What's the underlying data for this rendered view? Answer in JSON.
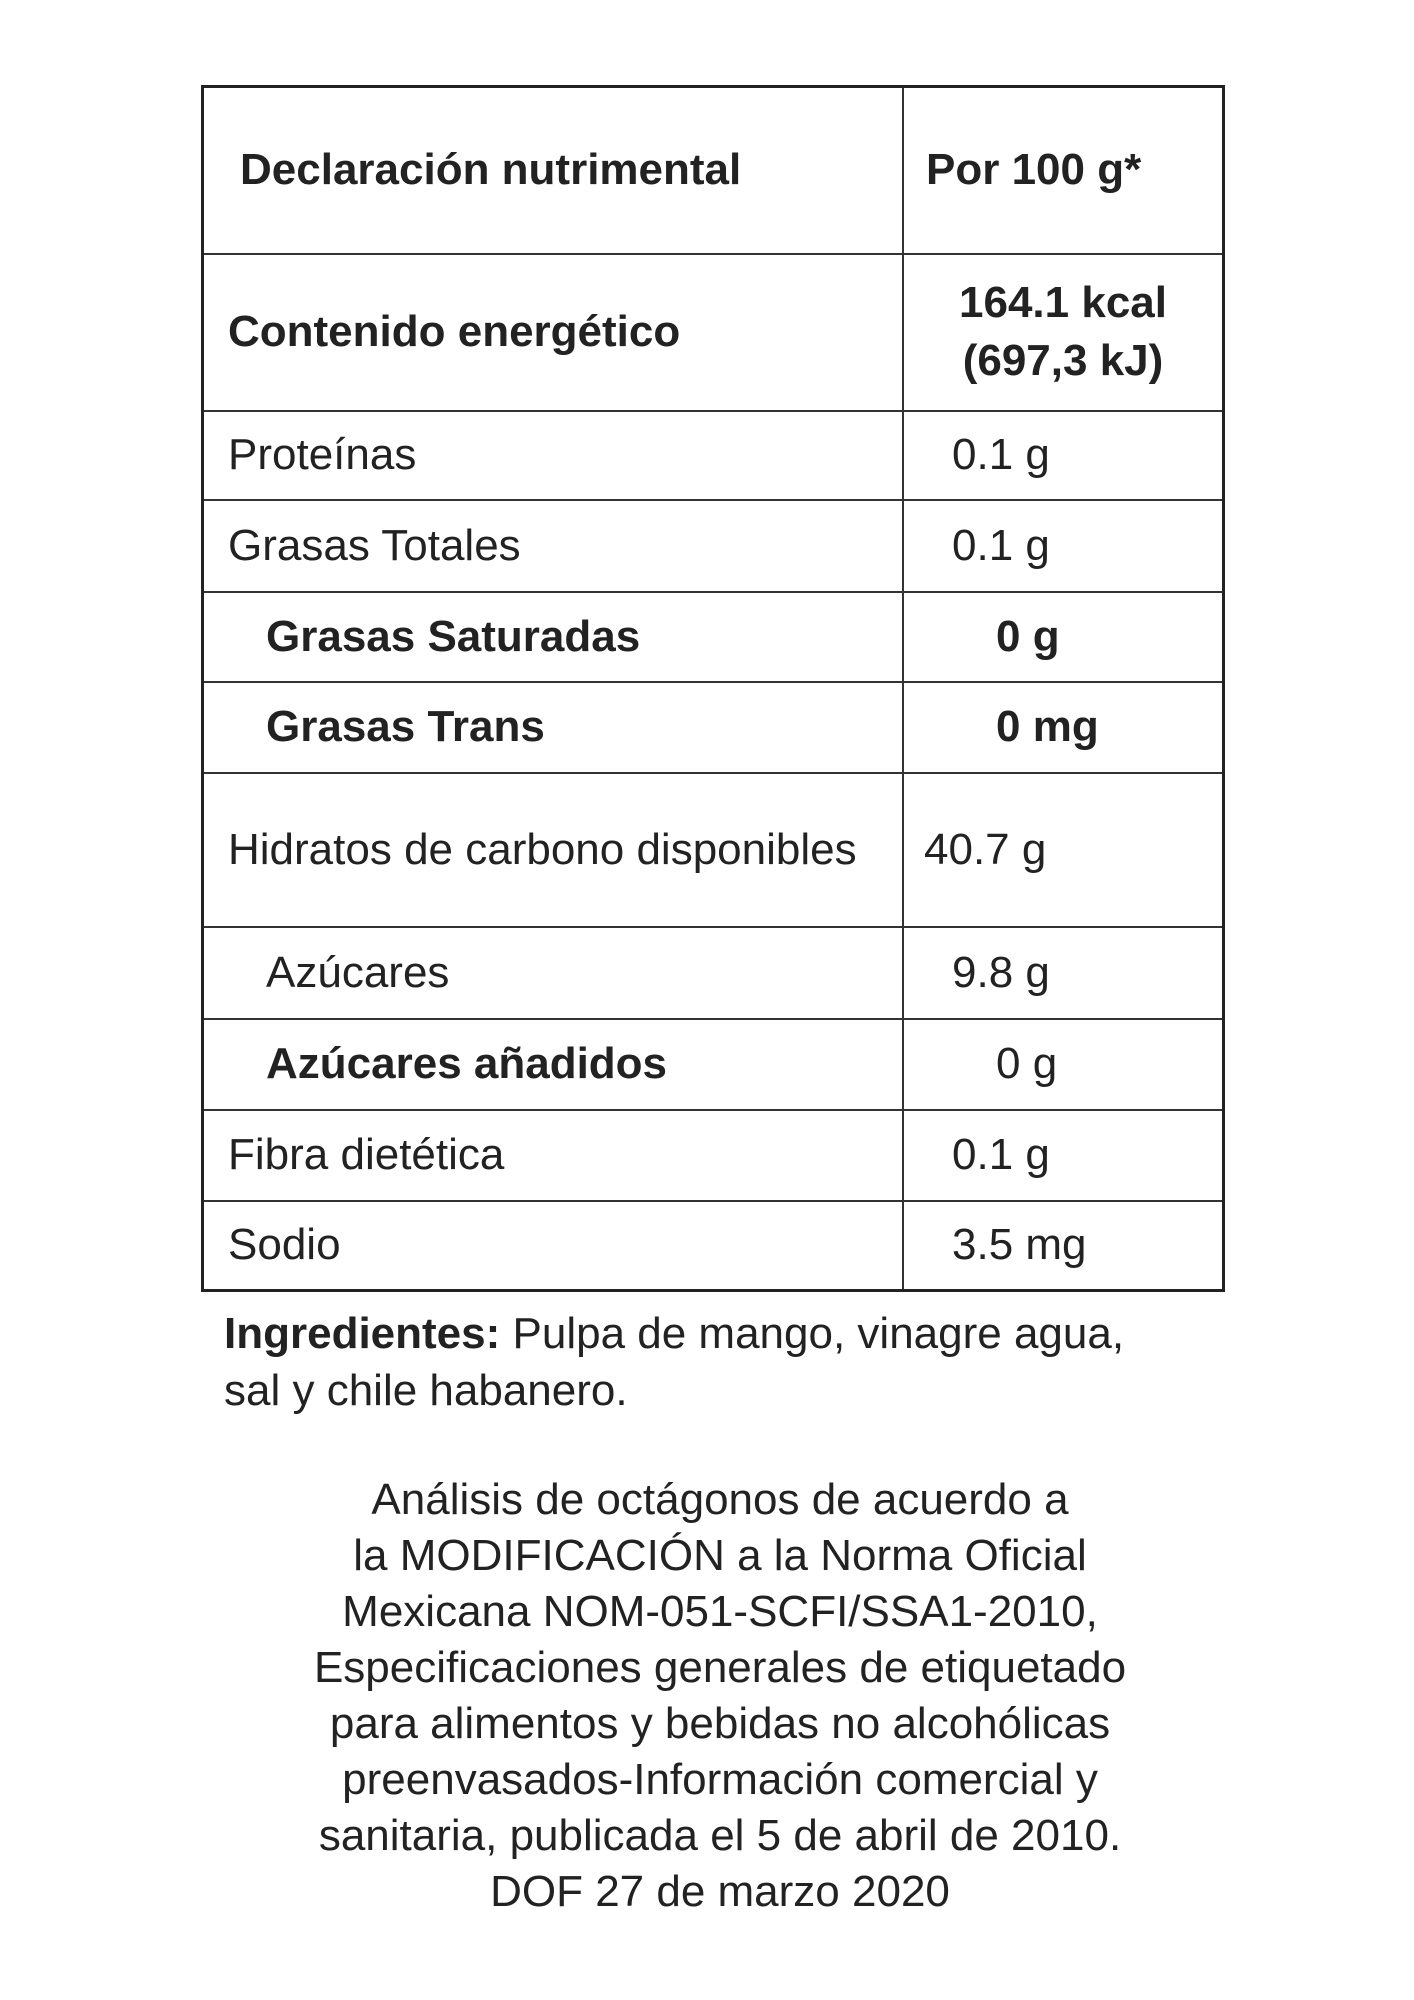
{
  "table": {
    "header": {
      "label": "Declaración nutrimental",
      "value": "Por 100 g*"
    },
    "energy": {
      "label": "Contenido energético",
      "value_kcal": "164.1 kcal",
      "value_kj": "(697,3 kJ)"
    },
    "rows": [
      {
        "label": "Proteínas",
        "value": "0.1 g",
        "bold": false,
        "indent": false
      },
      {
        "label": "Grasas Totales",
        "value": "0.1 g",
        "bold": false,
        "indent": false
      },
      {
        "label": "Grasas Saturadas",
        "value": "0 g",
        "bold": true,
        "indent": true
      },
      {
        "label": "Grasas Trans",
        "value": "0 mg",
        "bold": true,
        "indent": true
      },
      {
        "label": "Hidratos de carbono disponibles",
        "value": "40.7 g",
        "bold": false,
        "indent": false
      },
      {
        "label": "Azúcares",
        "value": "9.8 g",
        "bold": false,
        "indent": true
      },
      {
        "label": "Azúcares añadidos",
        "value": "0 g",
        "bold": "label-only",
        "indent": true
      },
      {
        "label": "Fibra dietética",
        "value": "0.1 g",
        "bold": false,
        "indent": false
      },
      {
        "label": "Sodio",
        "value": "3.5 mg",
        "bold": false,
        "indent": false
      }
    ]
  },
  "ingredients": {
    "label": "Ingredientes:",
    "text": " Pulpa de mango, vinagre agua, sal y chile habanero."
  },
  "footer": [
    "Análisis de octágonos de acuerdo a",
    "la MODIFICACIÓN a la Norma Oficial",
    "Mexicana NOM-051-SCFI/SSA1-2010,",
    "Especificaciones generales de etiquetado",
    "para alimentos y bebidas no alcohólicas",
    "preenvasados-Información comercial y",
    "sanitaria, publicada el 5 de abril de 2010.",
    "DOF 27 de marzo 2020"
  ]
}
